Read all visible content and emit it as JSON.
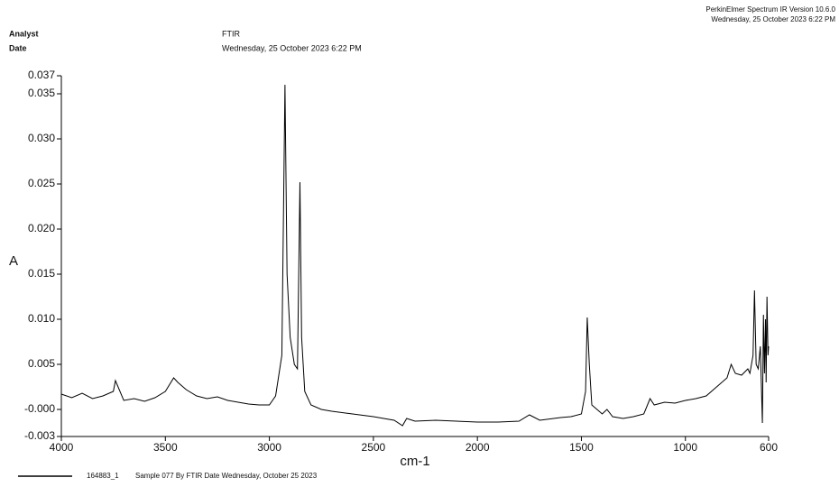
{
  "chart_data": {
    "type": "line",
    "header": {
      "analyst_label": "Analyst",
      "analyst": "FTIR",
      "date_label": "Date",
      "date": "Wednesday, 25 October 2023 6:22 PM",
      "software": "PerkinElmer Spectrum IR Version 10.6.0",
      "printed": "Wednesday, 25 October 2023 6:22 PM"
    },
    "x_label": "cm-1",
    "y_label": "A",
    "xlim": [
      4000,
      600
    ],
    "xticks": [
      4000,
      3500,
      3000,
      2500,
      2000,
      1500,
      1000,
      600
    ],
    "ylim": [
      -0.003,
      0.037
    ],
    "yticks": [
      0.037,
      0.035,
      {
        "value": 0.03,
        "label": "0.030"
      },
      0.025,
      {
        "value": 0.02,
        "label": "0.020"
      },
      0.015,
      {
        "value": 0.01,
        "label": "0.010"
      },
      0.005,
      {
        "value": 0,
        "label": "-0.000"
      },
      -0.003
    ],
    "x": [
      4000,
      3950,
      3900,
      3850,
      3800,
      3750,
      3740,
      3700,
      3650,
      3600,
      3550,
      3500,
      3460,
      3440,
      3400,
      3350,
      3300,
      3250,
      3200,
      3150,
      3100,
      3050,
      3000,
      2970,
      2940,
      2925,
      2915,
      2900,
      2880,
      2865,
      2853,
      2845,
      2830,
      2800,
      2750,
      2700,
      2600,
      2500,
      2400,
      2360,
      2340,
      2300,
      2200,
      2100,
      2000,
      1900,
      1800,
      1750,
      1700,
      1600,
      1550,
      1500,
      1480,
      1472,
      1462,
      1450,
      1400,
      1377,
      1350,
      1300,
      1250,
      1200,
      1170,
      1150,
      1100,
      1050,
      1000,
      950,
      900,
      850,
      800,
      780,
      760,
      730,
      700,
      690,
      675,
      668,
      660,
      650,
      640,
      630,
      625,
      620,
      615,
      612,
      608,
      603,
      600
    ],
    "series": [
      {
        "name": "164883_1",
        "description": "Sample 077 By FTIR Date Wednesday, October 25 2023",
        "color": "#000000",
        "values": [
          0.0017,
          0.0013,
          0.0018,
          0.0012,
          0.0015,
          0.002,
          0.0032,
          0.001,
          0.0012,
          0.0009,
          0.0013,
          0.002,
          0.0035,
          0.003,
          0.0022,
          0.0015,
          0.0012,
          0.0014,
          0.001,
          0.0008,
          0.0006,
          0.0005,
          0.0005,
          0.0015,
          0.006,
          0.036,
          0.015,
          0.008,
          0.005,
          0.0045,
          0.0252,
          0.008,
          0.002,
          0.0005,
          0.0,
          -0.0002,
          -0.0005,
          -0.0008,
          -0.0012,
          -0.0018,
          -0.001,
          -0.0013,
          -0.0012,
          -0.0013,
          -0.0014,
          -0.0014,
          -0.0013,
          -0.0006,
          -0.0012,
          -0.0009,
          -0.0008,
          -0.0005,
          0.002,
          0.0102,
          0.005,
          0.0005,
          -0.0005,
          0.0,
          -0.0008,
          -0.001,
          -0.0008,
          -0.0005,
          0.0012,
          0.0005,
          0.0008,
          0.0007,
          0.001,
          0.0012,
          0.0015,
          0.0025,
          0.0035,
          0.005,
          0.004,
          0.0038,
          0.0045,
          0.004,
          0.006,
          0.0132,
          0.005,
          0.0045,
          0.007,
          -0.0015,
          0.0105,
          0.004,
          0.01,
          0.003,
          0.0125,
          0.006,
          0.007
        ]
      }
    ]
  }
}
